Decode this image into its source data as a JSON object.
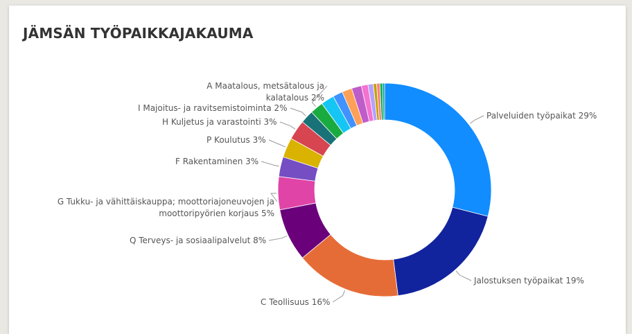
{
  "chart_data": {
    "type": "donut",
    "title": "JÄMSÄN TYÖPAIKKAJAKAUMA",
    "categories": [
      "Palveluiden työpaikat",
      "Jalostuksen työpaikat",
      "C Teollisuus",
      "Q Terveys- ja sosiaalipalvelut",
      "G Tukku- ja vähittäiskauppa; moottoriajoneuvojen ja moottoripyörien korjaus",
      "F Rakentaminen",
      "P Koulutus",
      "H Kuljetus ja varastointi",
      "I Majoitus- ja ravitsemistoiminta",
      "A Maatalous, metsätalous ja kalatalous",
      null,
      null,
      null,
      null,
      null,
      null,
      null,
      null,
      null,
      null
    ],
    "values": [
      29,
      19,
      16,
      8,
      5,
      3,
      3,
      3,
      2,
      2,
      2,
      1.5,
      1.5,
      1.5,
      1,
      0.8,
      0.5,
      0.5,
      0.4,
      0.3
    ],
    "value_labels": [
      "29%",
      "19%",
      "16%",
      "8%",
      "5%",
      "3%",
      "3%",
      "3%",
      "2%",
      "2%",
      null,
      null,
      null,
      null,
      null,
      null,
      null,
      null,
      null,
      null
    ],
    "colors": [
      "#118DFF",
      "#12239E",
      "#E66C37",
      "#6B007B",
      "#E044A7",
      "#744EC2",
      "#D9B300",
      "#D64550",
      "#197278",
      "#1AAB40",
      "#15C6F4",
      "#4092FF",
      "#FFA058",
      "#BE5DC9",
      "#F472D0",
      "#B5A1FF",
      "#C4A200",
      "#FF8080",
      "#00B050",
      "#009999"
    ]
  }
}
